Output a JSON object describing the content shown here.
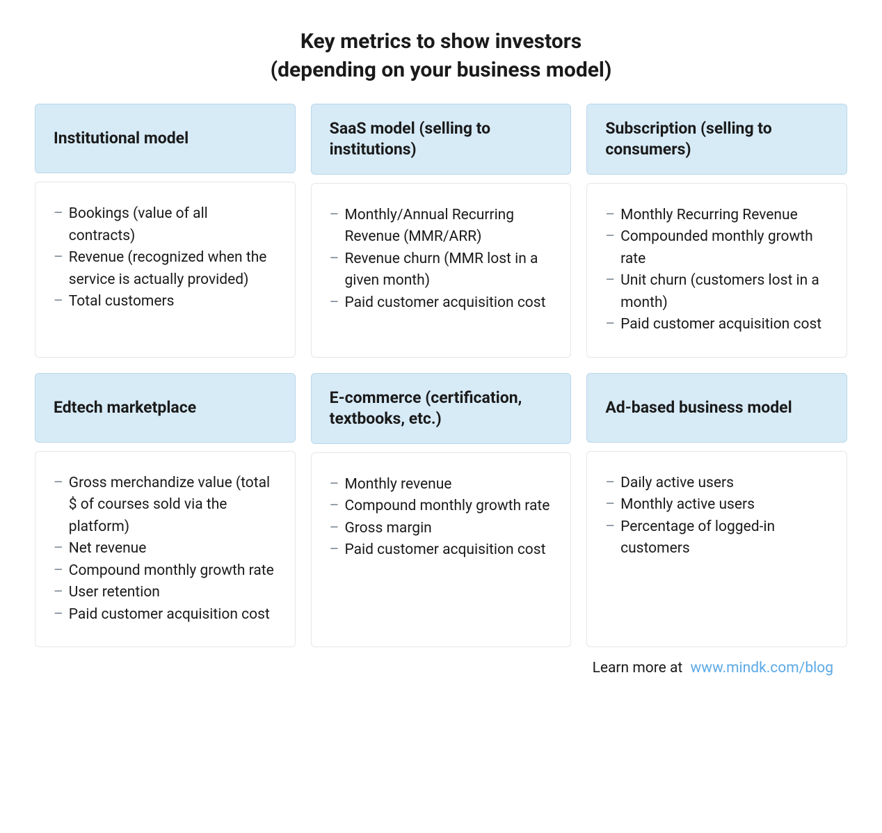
{
  "title_line1": "Key metrics to show investors",
  "title_line2": "(depending on your business model)",
  "styling": {
    "type": "infographic",
    "background_color": "#ffffff",
    "header_bg_color": "#d7ebf7",
    "header_border_color": "#b9d6e8",
    "body_border_color": "#e4e7eb",
    "dash_color": "#7a8896",
    "text_color": "#1a1a1a",
    "link_color": "#5aa9e6",
    "title_fontsize": 30,
    "title_fontweight": 700,
    "header_fontsize": 23,
    "header_fontweight": 700,
    "body_fontsize": 21,
    "border_radius": 6,
    "grid_columns": 3,
    "grid_rows": 2,
    "gap": 22
  },
  "cards": [
    {
      "header": "Institutional model",
      "metrics": [
        "Bookings (value of all contracts)",
        "Revenue (recognized when the service is actually provided)",
        "Total customers"
      ]
    },
    {
      "header": "SaaS model (selling to institutions)",
      "metrics": [
        "Monthly/Annual Recurring Revenue (MMR/ARR)",
        "Revenue churn (MMR lost in a given month)",
        "Paid customer acquisition cost"
      ]
    },
    {
      "header": "Subscription (selling to consumers)",
      "metrics": [
        "Monthly Recurring Revenue",
        "Compounded monthly growth rate",
        "Unit churn (customers lost in a month)",
        "Paid customer acquisition cost"
      ]
    },
    {
      "header": "Edtech marketplace",
      "metrics": [
        "Gross merchandize value (total $ of courses sold via the platform)",
        "Net revenue",
        "Compound monthly growth rate",
        "User retention",
        "Paid customer acquisition cost"
      ]
    },
    {
      "header": "E-commerce (certification, textbooks, etc.)",
      "metrics": [
        "Monthly revenue",
        "Compound monthly growth rate",
        "Gross margin",
        "Paid customer acquisition cost"
      ]
    },
    {
      "header": "Ad-based business model",
      "metrics": [
        "Daily active users",
        "Monthly active users",
        "Percentage of logged-in customers"
      ]
    }
  ],
  "footer_text": "Learn more at",
  "footer_link": "www.mindk.com/blog"
}
